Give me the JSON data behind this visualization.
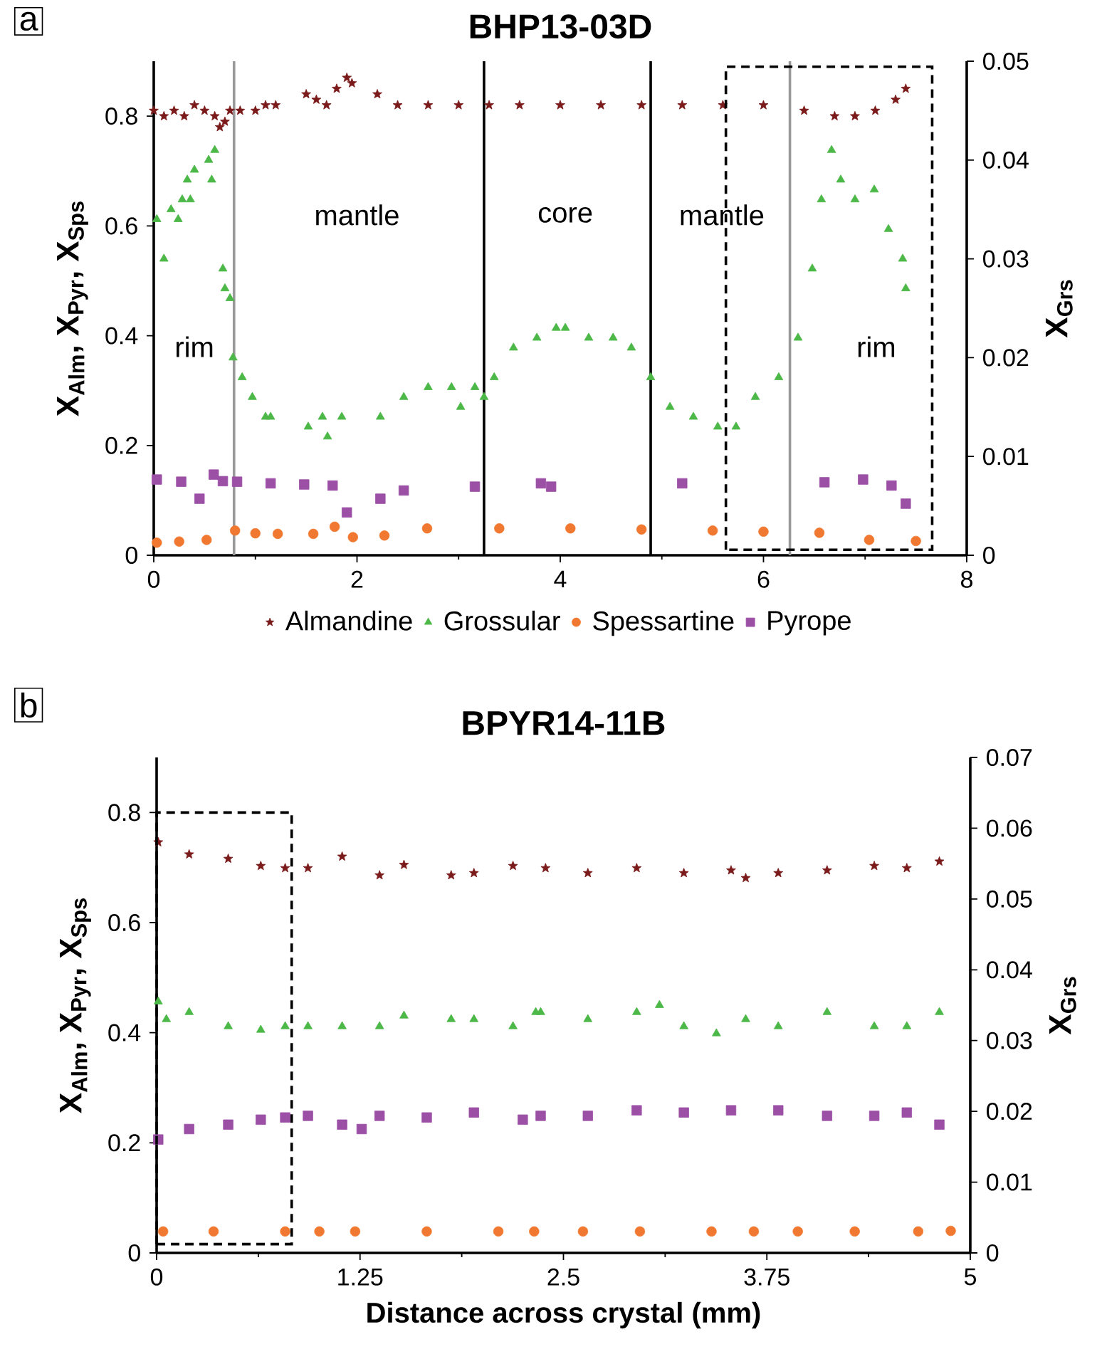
{
  "chart_data": [
    {
      "type": "scatter",
      "title": "BHP13-03D",
      "ylabel": "X$_{Alm}$, X$_{Pyr}$, X$_{Sps}$",
      "y2label": "X$_{Grs}$",
      "xlim": [
        0,
        8
      ],
      "xticks": [
        0,
        2,
        4,
        6,
        8
      ],
      "ylim": [
        0,
        0.9
      ],
      "yticks": [
        0,
        0.2,
        0.4,
        0.6,
        0.8
      ],
      "y2lim": [
        0,
        0.05
      ],
      "y2ticks": [
        0,
        0.01,
        0.02,
        0.03,
        0.04,
        0.05
      ],
      "legend": "bottom",
      "annotations": [
        "a",
        "rim",
        "mantle",
        "core",
        "mantle",
        "rim"
      ],
      "ref_lines": [
        {
          "axis": "x",
          "value": 0.79,
          "color": "#999999"
        },
        {
          "axis": "x",
          "value": 3.25,
          "color": "#000000"
        },
        {
          "axis": "x",
          "value": 4.89,
          "color": "#000000"
        },
        {
          "axis": "x",
          "value": 6.26,
          "color": "#999999"
        }
      ],
      "series": [
        {
          "name": "Almandine",
          "color": "#7b1a1a",
          "marker": "star",
          "x": [
            0.0,
            0.1,
            0.2,
            0.3,
            0.4,
            0.5,
            0.6,
            0.65,
            0.7,
            0.75,
            0.85,
            1.0,
            1.1,
            1.2,
            1.5,
            1.6,
            1.7,
            1.8,
            1.9,
            1.95,
            2.2,
            2.4,
            2.7,
            3.0,
            3.3,
            3.6,
            4.0,
            4.4,
            4.8,
            5.2,
            5.6,
            6.0,
            6.4,
            6.7,
            6.9,
            7.1,
            7.3,
            7.4
          ],
          "values": [
            0.81,
            0.8,
            0.81,
            0.8,
            0.82,
            0.81,
            0.8,
            0.78,
            0.79,
            0.81,
            0.81,
            0.81,
            0.82,
            0.82,
            0.84,
            0.83,
            0.82,
            0.85,
            0.87,
            0.86,
            0.84,
            0.82,
            0.82,
            0.82,
            0.82,
            0.82,
            0.82,
            0.82,
            0.82,
            0.82,
            0.82,
            0.82,
            0.81,
            0.8,
            0.8,
            0.81,
            0.83,
            0.85
          ]
        },
        {
          "name": "Grossular",
          "color": "#4cb848",
          "marker": "triangle",
          "axis": "y2",
          "x": [
            0.03,
            0.1,
            0.17,
            0.24,
            0.28,
            0.33,
            0.36,
            0.4,
            0.54,
            0.57,
            0.6,
            0.68,
            0.7,
            0.75,
            0.78,
            0.87,
            0.97,
            1.1,
            1.15,
            1.52,
            1.66,
            1.71,
            1.85,
            2.23,
            2.46,
            2.7,
            2.93,
            3.02,
            3.16,
            3.25,
            3.35,
            3.54,
            3.77,
            3.96,
            4.05,
            4.28,
            4.52,
            4.7,
            4.89,
            5.08,
            5.31,
            5.55,
            5.73,
            5.92,
            6.15,
            6.34,
            6.48,
            6.57,
            6.67,
            6.76,
            6.9,
            7.09,
            7.23,
            7.37,
            7.4
          ],
          "values": [
            0.034,
            0.03,
            0.035,
            0.034,
            0.036,
            0.038,
            0.036,
            0.039,
            0.04,
            0.038,
            0.041,
            0.029,
            0.027,
            0.026,
            0.02,
            0.018,
            0.016,
            0.014,
            0.014,
            0.013,
            0.014,
            0.012,
            0.014,
            0.014,
            0.016,
            0.017,
            0.017,
            0.015,
            0.017,
            0.016,
            0.018,
            0.021,
            0.022,
            0.023,
            0.023,
            0.022,
            0.022,
            0.021,
            0.018,
            0.015,
            0.014,
            0.013,
            0.013,
            0.016,
            0.018,
            0.022,
            0.029,
            0.036,
            0.041,
            0.038,
            0.036,
            0.037,
            0.033,
            0.03,
            0.027
          ]
        },
        {
          "name": "Spessartine",
          "color": "#f07830",
          "marker": "circle",
          "x": [
            0.03,
            0.25,
            0.52,
            0.8,
            1.0,
            1.22,
            1.57,
            1.78,
            1.96,
            2.27,
            2.69,
            3.4,
            4.1,
            4.8,
            5.5,
            6.0,
            6.55,
            7.04,
            7.5
          ],
          "values": [
            0.023,
            0.025,
            0.028,
            0.045,
            0.04,
            0.039,
            0.039,
            0.052,
            0.033,
            0.036,
            0.049,
            0.049,
            0.049,
            0.047,
            0.045,
            0.043,
            0.041,
            0.028,
            0.026
          ]
        },
        {
          "name": "Pyrope",
          "color": "#9b4fa5",
          "marker": "square",
          "x": [
            0.03,
            0.27,
            0.45,
            0.59,
            0.68,
            0.82,
            1.15,
            1.48,
            1.76,
            1.9,
            2.23,
            2.46,
            3.16,
            3.91,
            3.81,
            5.2,
            6.6,
            6.98,
            7.26,
            7.4
          ],
          "values": [
            0.138,
            0.134,
            0.103,
            0.147,
            0.135,
            0.134,
            0.131,
            0.129,
            0.127,
            0.078,
            0.103,
            0.118,
            0.125,
            0.125,
            0.131,
            0.131,
            0.133,
            0.138,
            0.127,
            0.094
          ]
        }
      ]
    },
    {
      "type": "scatter",
      "title": "BPYR14-11B",
      "xlabel": "Distance across crystal (mm)",
      "ylabel": "X$_{Alm}$, X$_{Pyr}$, X$_{Sps}$",
      "y2label": "X$_{Grs}$",
      "xlim": [
        0,
        5
      ],
      "xticks": [
        0,
        1.25,
        2.5,
        3.75,
        5
      ],
      "ylim": [
        0,
        0.9
      ],
      "yticks": [
        0,
        0.2,
        0.4,
        0.6,
        0.8
      ],
      "y2lim": [
        0,
        0.07
      ],
      "y2ticks": [
        0,
        0.01,
        0.02,
        0.03,
        0.04,
        0.05,
        0.06,
        0.07
      ],
      "annotations": [
        "b"
      ],
      "series": [
        {
          "color": "#7b1a1a",
          "marker": "star",
          "x": [
            0.01,
            0.2,
            0.44,
            0.64,
            0.79,
            0.93,
            1.14,
            1.37,
            1.52,
            1.81,
            1.95,
            2.19,
            2.39,
            2.65,
            2.95,
            3.24,
            3.53,
            3.62,
            3.82,
            4.12,
            4.41,
            4.61,
            4.81
          ],
          "values": [
            0.746,
            0.724,
            0.716,
            0.703,
            0.699,
            0.699,
            0.72,
            0.686,
            0.705,
            0.686,
            0.69,
            0.703,
            0.699,
            0.69,
            0.699,
            0.69,
            0.695,
            0.681,
            0.69,
            0.695,
            0.703,
            0.699,
            0.711
          ]
        },
        {
          "color": "#4cb848",
          "marker": "triangle",
          "axis": "y2",
          "x": [
            0.01,
            0.06,
            0.2,
            0.44,
            0.64,
            0.79,
            0.93,
            1.14,
            1.37,
            1.52,
            1.81,
            1.95,
            2.19,
            2.33,
            2.36,
            2.65,
            2.95,
            3.09,
            3.24,
            3.44,
            3.62,
            3.82,
            4.12,
            4.41,
            4.61,
            4.81
          ],
          "values": [
            0.0355,
            0.033,
            0.034,
            0.032,
            0.0315,
            0.032,
            0.032,
            0.032,
            0.032,
            0.0335,
            0.033,
            0.033,
            0.032,
            0.034,
            0.034,
            0.033,
            0.034,
            0.035,
            0.032,
            0.031,
            0.033,
            0.032,
            0.034,
            0.032,
            0.032,
            0.034
          ]
        },
        {
          "color": "#f07830",
          "marker": "circle",
          "x": [
            0.04,
            0.35,
            0.79,
            1.0,
            1.22,
            1.66,
            2.1,
            2.32,
            2.62,
            2.97,
            3.41,
            3.67,
            3.94,
            4.29,
            4.68,
            4.88
          ],
          "values": [
            0.039,
            0.039,
            0.039,
            0.039,
            0.039,
            0.039,
            0.039,
            0.039,
            0.039,
            0.039,
            0.039,
            0.039,
            0.039,
            0.039,
            0.039,
            0.04
          ]
        },
        {
          "color": "#9b4fa5",
          "marker": "square",
          "x": [
            0.01,
            0.2,
            0.44,
            0.64,
            0.79,
            0.93,
            1.14,
            1.26,
            1.37,
            1.66,
            1.95,
            2.25,
            2.36,
            2.65,
            2.95,
            3.24,
            3.53,
            3.82,
            4.12,
            4.41,
            4.61,
            4.81
          ],
          "values": [
            0.206,
            0.225,
            0.233,
            0.242,
            0.246,
            0.249,
            0.233,
            0.225,
            0.249,
            0.246,
            0.255,
            0.242,
            0.249,
            0.249,
            0.259,
            0.255,
            0.259,
            0.259,
            0.249,
            0.249,
            0.255,
            0.233
          ]
        }
      ]
    }
  ]
}
